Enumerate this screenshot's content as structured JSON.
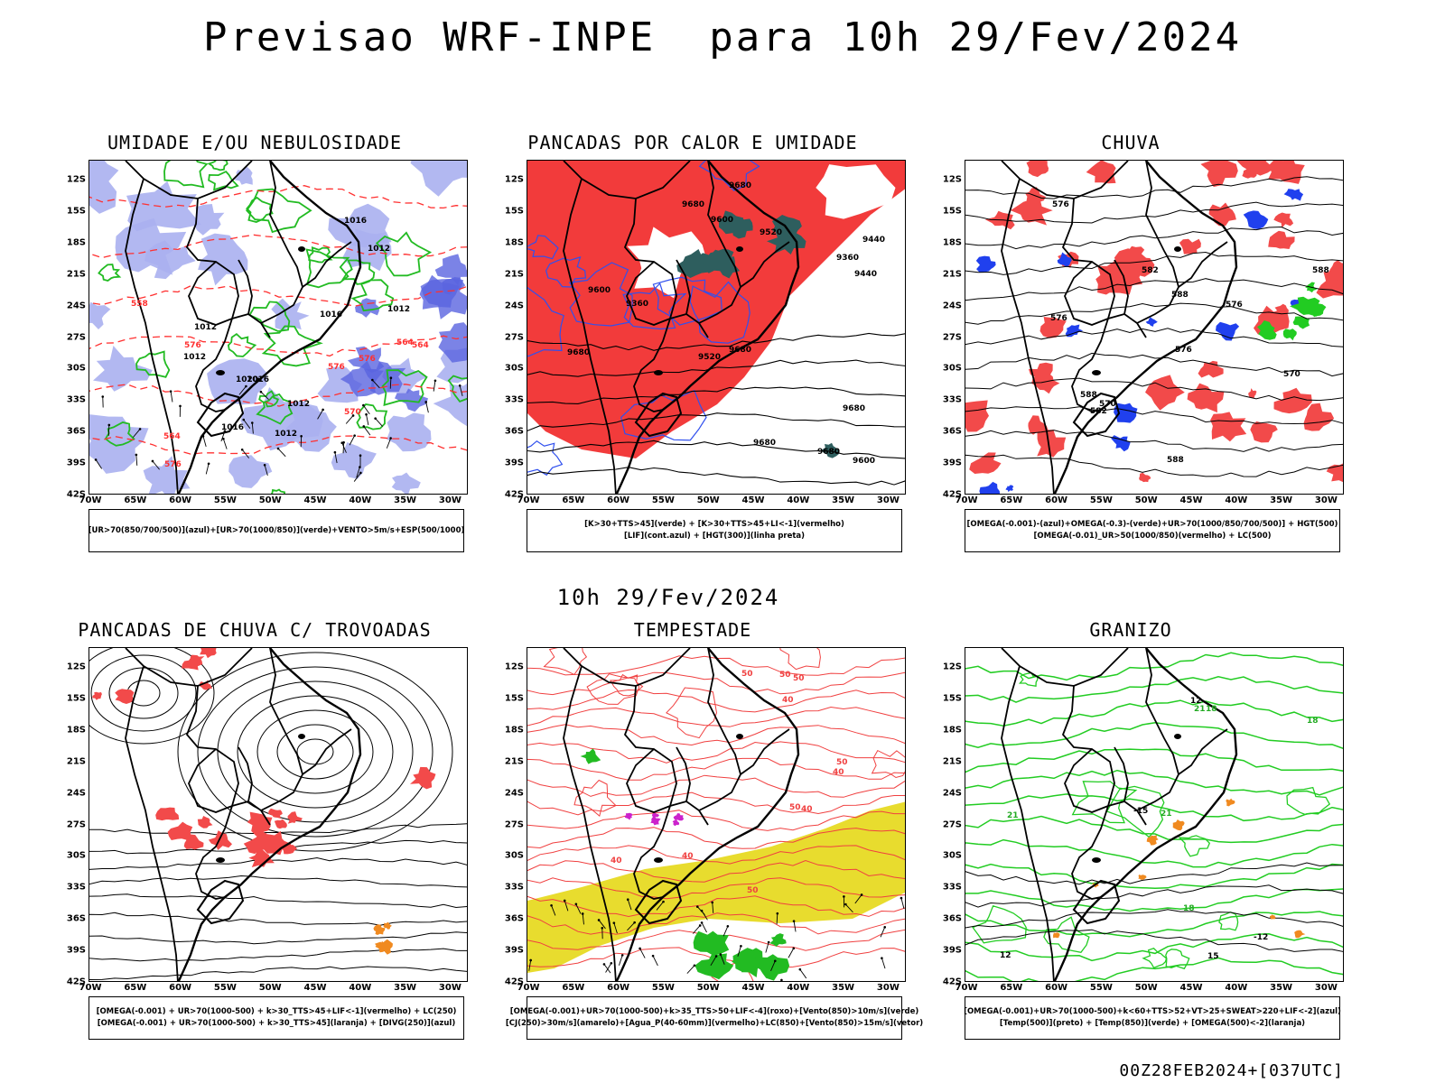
{
  "title": "Previsao WRF-INPE  para 10h 29/Fev/2024",
  "mid_date": "10h 29/Fev/2024",
  "footer": "00Z28FEB2024+[037UTC]",
  "axes": {
    "lat": [
      "12S",
      "15S",
      "18S",
      "21S",
      "24S",
      "27S",
      "30S",
      "33S",
      "36S",
      "39S",
      "42S"
    ],
    "lon": [
      "70W",
      "65W",
      "60W",
      "55W",
      "50W",
      "45W",
      "40W",
      "35W",
      "30W"
    ]
  },
  "panels": [
    {
      "id": "umidade",
      "title": "UMIDADE E/OU NEBULOSIDADE",
      "legend": [
        "[UR>70(850/700/500)](azul)+[UR>70(1000/850)](verde)+VENTO>5m/s+ESP(500/1000)"
      ],
      "contour_labels": [
        "1012",
        "1012",
        "1012",
        "1012",
        "1012",
        "1016",
        "1016",
        "1016",
        "1016",
        "1020",
        "1012",
        "576",
        "576",
        "576",
        "570",
        "564",
        "564",
        "576",
        "564",
        "558"
      ]
    },
    {
      "id": "pancadas-calor",
      "title": "PANCADAS POR CALOR E UMIDADE",
      "legend": [
        "[K>30+TTS>45](verde) + [K>30+TTS>45+LI<-1](vermelho)",
        "[LIF](cont.azul) + [HGT(300)](linha preta)"
      ],
      "contour_labels": [
        "9680",
        "9680",
        "9680",
        "9680",
        "9680",
        "9680",
        "9600",
        "9600",
        "9520",
        "9520",
        "9440",
        "9440",
        "9360",
        "9360",
        "9680",
        "9600"
      ]
    },
    {
      "id": "chuva",
      "title": "CHUVA",
      "legend": [
        "[OMEGA(-0.001)-(azul)+OMEGA(-0.3)-(verde)+UR>70(1000/850/700/500)] + HGT(500)",
        "[OMEGA(-0.01)_UR>50(1000/850)(vermelho) + LC(500)"
      ],
      "contour_labels": [
        "588",
        "588",
        "588",
        "588",
        "582",
        "582",
        "576",
        "576",
        "576",
        "570",
        "570",
        "576"
      ]
    },
    {
      "id": "trovoadas",
      "title": "PANCADAS DE CHUVA C/ TROVOADAS",
      "legend": [
        "[OMEGA(-0.001) + UR>70(1000-500) + k>30_TTS>45+LIF<-1](vermelho) + LC(250)",
        "[OMEGA(-0.001) + UR>70(1000-500) + k>30_TTS>45](laranja) + [DIVG(250)](azul)"
      ],
      "contour_labels": []
    },
    {
      "id": "tempestade",
      "title": "TEMPESTADE",
      "legend": [
        "[OMEGA(-0.001)+UR>70(1000-500)+k>35_TTS>50+LIF<-4](roxo)+[Vento(850)>10m/s](verde)",
        "[CJ(250)>30m/s](amarelo)+[Agua_P(40-60mm)](vermelho)+LC(850)+[Vento(850)>15m/s](vetor)"
      ],
      "contour_labels": [
        "50",
        "50",
        "50",
        "40",
        "40",
        "50",
        "40",
        "50",
        "50",
        "40",
        "40"
      ]
    },
    {
      "id": "granizo",
      "title": "GRANIZO",
      "legend": [
        "[OMEGA(-0.001)+UR>70(1000-500)+k<60+TTS>52+VT>25+SWEAT>220+LIF<-2](azul)",
        "[Temp(500)](preto) + [Temp(850)](verde) + [OMEGA(500)<-2](laranja)"
      ],
      "contour_labels": [
        "18",
        "18",
        "21",
        "21",
        "21",
        "15",
        "12",
        "-12",
        "-15",
        "18",
        "12"
      ]
    }
  ]
}
